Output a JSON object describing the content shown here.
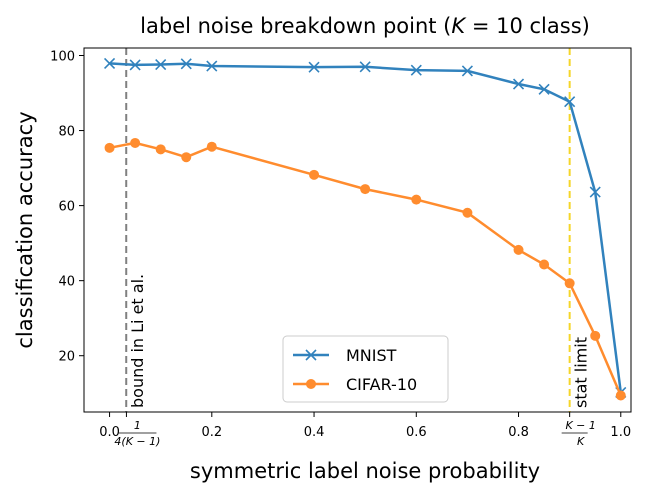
{
  "chart_data": {
    "type": "line",
    "title": "label noise breakdown point (K = 10 class)",
    "title_prefix": "label noise breakdown point (",
    "title_math": "K",
    "title_suffix": " = 10 class)",
    "xlabel": "symmetric label noise probability",
    "ylabel": "classification accuracy",
    "xlim": [
      -0.05,
      1.02
    ],
    "ylim": [
      5,
      102
    ],
    "x_ticks": [
      {
        "value": 0.0,
        "label": "0.0"
      },
      {
        "value": 0.2,
        "label": "0.2"
      },
      {
        "value": 0.4,
        "label": "0.4"
      },
      {
        "value": 0.6,
        "label": "0.6"
      },
      {
        "value": 0.8,
        "label": "0.8"
      },
      {
        "value": 1.0,
        "label": "1.0"
      }
    ],
    "x_frac_ticks": [
      {
        "value": 0.033,
        "numerator": "1",
        "denominator": "4(K − 1)"
      },
      {
        "value": 0.9,
        "numerator": "K − 1",
        "denominator": "K"
      }
    ],
    "y_ticks": [
      20,
      40,
      60,
      80,
      100
    ],
    "grid": false,
    "legend_position": "bottom-center",
    "series": [
      {
        "name": "MNIST",
        "color": "#3182bd",
        "marker": "x",
        "x": [
          0.0,
          0.05,
          0.1,
          0.15,
          0.2,
          0.4,
          0.5,
          0.6,
          0.7,
          0.8,
          0.85,
          0.9,
          0.95,
          1.0
        ],
        "y": [
          97.9,
          97.5,
          97.6,
          97.8,
          97.2,
          96.9,
          97.0,
          96.1,
          95.9,
          92.4,
          91.0,
          87.7,
          63.6,
          10.2
        ]
      },
      {
        "name": "CIFAR-10",
        "color": "#ff8c2e",
        "marker": "o",
        "x": [
          0.0,
          0.05,
          0.1,
          0.15,
          0.2,
          0.4,
          0.5,
          0.6,
          0.7,
          0.8,
          0.85,
          0.9,
          0.95,
          1.0
        ],
        "y": [
          75.4,
          76.7,
          75.0,
          72.9,
          75.7,
          68.2,
          64.4,
          61.6,
          58.1,
          48.2,
          44.3,
          39.3,
          25.3,
          9.4
        ]
      }
    ],
    "vlines": [
      {
        "x": 0.0326,
        "color": "#808080",
        "label": "bound in Li et al."
      },
      {
        "x": 0.9,
        "color": "#f5d629",
        "label": "stat limit"
      }
    ]
  }
}
